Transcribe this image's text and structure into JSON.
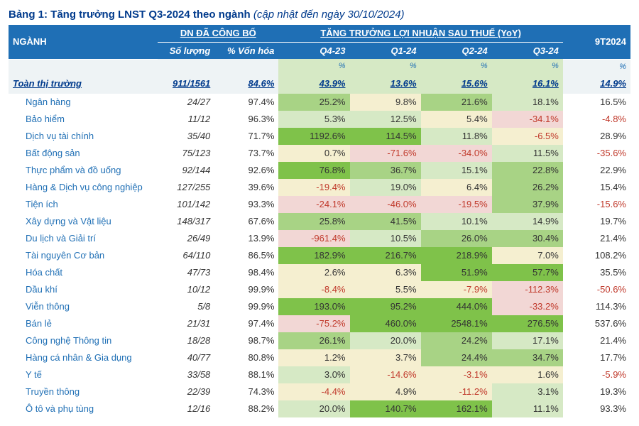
{
  "title": {
    "prefix": "Bảng 1: Tăng trưởng LNST Q3-2024 theo ngành",
    "note": "(cập nhật đến ngày 30/10/2024)"
  },
  "colors": {
    "header_bg": "#1f6fb5",
    "header_fg": "#ffffff",
    "brand_text": "#003a8c",
    "sector_text": "#1f6fb5",
    "neg_text": "#c0392b",
    "row_alt_bg": "#eef3f5",
    "heat": {
      "strong_green": "#7fc24a",
      "green": "#a8d385",
      "light_green": "#d6e9c5",
      "cream": "#f5efd0",
      "light_red": "#f2d7d5"
    }
  },
  "headers": {
    "sector": "NGÀNH",
    "group_published": "DN ĐÃ CÔNG BỐ",
    "group_growth": "TĂNG TRƯỞNG LỢI NHUẬN SAU THUẾ (YoY)",
    "qty": "Số lượng",
    "mktcap": "% Vốn hóa",
    "q4_23": "Q4-23",
    "q1_24": "Q1-24",
    "q2_24": "Q2-24",
    "q3_24": "Q3-24",
    "yoy_9t": "9T2024",
    "unit": "%"
  },
  "totals": {
    "label": "Toàn thị trường",
    "qty": "911/1561",
    "mktcap": "84.6%",
    "q4_23": "43.9%",
    "q1_24": "13.6%",
    "q2_24": "15.6%",
    "q3_24": "16.1%",
    "yoy_9t": "14.9%"
  },
  "rows": [
    {
      "name": "Ngân hàng",
      "qty": "24/27",
      "mktcap": "97.4%",
      "q4_23": {
        "v": "25.2%",
        "h": "green"
      },
      "q1_24": {
        "v": "9.8%",
        "h": "cream"
      },
      "q2_24": {
        "v": "21.6%",
        "h": "green"
      },
      "q3_24": {
        "v": "18.1%",
        "h": "light_green"
      },
      "yoy_9t": {
        "v": "16.5%"
      }
    },
    {
      "name": "Bảo hiểm",
      "qty": "11/12",
      "mktcap": "96.3%",
      "q4_23": {
        "v": "5.3%",
        "h": "light_green"
      },
      "q1_24": {
        "v": "12.5%",
        "h": "light_green"
      },
      "q2_24": {
        "v": "5.4%",
        "h": "cream"
      },
      "q3_24": {
        "v": "-34.1%",
        "h": "light_red",
        "neg": true
      },
      "yoy_9t": {
        "v": "-4.8%",
        "neg": true
      }
    },
    {
      "name": "Dịch vụ tài chính",
      "qty": "35/40",
      "mktcap": "71.7%",
      "q4_23": {
        "v": "1192.6%",
        "h": "strong_green"
      },
      "q1_24": {
        "v": "114.5%",
        "h": "strong_green"
      },
      "q2_24": {
        "v": "11.8%",
        "h": "light_green"
      },
      "q3_24": {
        "v": "-6.5%",
        "h": "cream",
        "neg": true
      },
      "yoy_9t": {
        "v": "28.9%"
      }
    },
    {
      "name": "Bất động sản",
      "qty": "75/123",
      "mktcap": "73.7%",
      "q4_23": {
        "v": "0.7%",
        "h": "cream"
      },
      "q1_24": {
        "v": "-71.6%",
        "h": "light_red",
        "neg": true
      },
      "q2_24": {
        "v": "-34.0%",
        "h": "light_red",
        "neg": true
      },
      "q3_24": {
        "v": "11.5%",
        "h": "light_green"
      },
      "yoy_9t": {
        "v": "-35.6%",
        "neg": true
      }
    },
    {
      "name": "Thực phẩm và đồ uống",
      "qty": "92/144",
      "mktcap": "92.6%",
      "q4_23": {
        "v": "76.8%",
        "h": "strong_green"
      },
      "q1_24": {
        "v": "36.7%",
        "h": "green"
      },
      "q2_24": {
        "v": "15.1%",
        "h": "light_green"
      },
      "q3_24": {
        "v": "22.8%",
        "h": "green"
      },
      "yoy_9t": {
        "v": "22.9%"
      }
    },
    {
      "name": "Hàng & Dịch vụ công nghiệp",
      "qty": "127/255",
      "mktcap": "39.6%",
      "q4_23": {
        "v": "-19.4%",
        "h": "cream",
        "neg": true
      },
      "q1_24": {
        "v": "19.0%",
        "h": "light_green"
      },
      "q2_24": {
        "v": "6.4%",
        "h": "cream"
      },
      "q3_24": {
        "v": "26.2%",
        "h": "green"
      },
      "yoy_9t": {
        "v": "15.4%"
      }
    },
    {
      "name": "Tiện ích",
      "qty": "101/142",
      "mktcap": "93.3%",
      "q4_23": {
        "v": "-24.1%",
        "h": "light_red",
        "neg": true
      },
      "q1_24": {
        "v": "-46.0%",
        "h": "light_red",
        "neg": true
      },
      "q2_24": {
        "v": "-19.5%",
        "h": "light_red",
        "neg": true
      },
      "q3_24": {
        "v": "37.9%",
        "h": "green"
      },
      "yoy_9t": {
        "v": "-15.6%",
        "neg": true
      }
    },
    {
      "name": "Xây dựng và Vật liệu",
      "qty": "148/317",
      "mktcap": "67.6%",
      "q4_23": {
        "v": "25.8%",
        "h": "green"
      },
      "q1_24": {
        "v": "41.5%",
        "h": "green"
      },
      "q2_24": {
        "v": "10.1%",
        "h": "light_green"
      },
      "q3_24": {
        "v": "14.9%",
        "h": "light_green"
      },
      "yoy_9t": {
        "v": "19.7%"
      }
    },
    {
      "name": "Du lịch và Giải trí",
      "qty": "26/49",
      "mktcap": "13.9%",
      "q4_23": {
        "v": "-961.4%",
        "h": "light_red",
        "neg": true
      },
      "q1_24": {
        "v": "10.5%",
        "h": "light_green"
      },
      "q2_24": {
        "v": "26.0%",
        "h": "green"
      },
      "q3_24": {
        "v": "30.4%",
        "h": "green"
      },
      "yoy_9t": {
        "v": "21.4%"
      }
    },
    {
      "name": "Tài nguyên Cơ bản",
      "qty": "64/110",
      "mktcap": "86.5%",
      "q4_23": {
        "v": "182.9%",
        "h": "strong_green"
      },
      "q1_24": {
        "v": "216.7%",
        "h": "strong_green"
      },
      "q2_24": {
        "v": "218.9%",
        "h": "strong_green"
      },
      "q3_24": {
        "v": "7.0%",
        "h": "cream"
      },
      "yoy_9t": {
        "v": "108.2%"
      }
    },
    {
      "name": "Hóa chất",
      "qty": "47/73",
      "mktcap": "98.4%",
      "q4_23": {
        "v": "2.6%",
        "h": "cream"
      },
      "q1_24": {
        "v": "6.3%",
        "h": "cream"
      },
      "q2_24": {
        "v": "51.9%",
        "h": "strong_green"
      },
      "q3_24": {
        "v": "57.7%",
        "h": "strong_green"
      },
      "yoy_9t": {
        "v": "35.5%"
      }
    },
    {
      "name": "Dầu khí",
      "qty": "10/12",
      "mktcap": "99.9%",
      "q4_23": {
        "v": "-8.4%",
        "h": "cream",
        "neg": true
      },
      "q1_24": {
        "v": "5.5%",
        "h": "cream"
      },
      "q2_24": {
        "v": "-7.9%",
        "h": "cream",
        "neg": true
      },
      "q3_24": {
        "v": "-112.3%",
        "h": "light_red",
        "neg": true
      },
      "yoy_9t": {
        "v": "-50.6%",
        "neg": true
      }
    },
    {
      "name": "Viễn thông",
      "qty": "5/8",
      "mktcap": "99.9%",
      "q4_23": {
        "v": "193.0%",
        "h": "strong_green"
      },
      "q1_24": {
        "v": "95.2%",
        "h": "strong_green"
      },
      "q2_24": {
        "v": "444.0%",
        "h": "strong_green"
      },
      "q3_24": {
        "v": "-33.2%",
        "h": "light_red",
        "neg": true
      },
      "yoy_9t": {
        "v": "114.3%"
      }
    },
    {
      "name": "Bán lẻ",
      "qty": "21/31",
      "mktcap": "97.4%",
      "q4_23": {
        "v": "-75.2%",
        "h": "light_red",
        "neg": true
      },
      "q1_24": {
        "v": "460.0%",
        "h": "strong_green"
      },
      "q2_24": {
        "v": "2548.1%",
        "h": "strong_green"
      },
      "q3_24": {
        "v": "276.5%",
        "h": "strong_green"
      },
      "yoy_9t": {
        "v": "537.6%"
      }
    },
    {
      "name": "Công nghệ Thông tin",
      "qty": "18/28",
      "mktcap": "98.7%",
      "q4_23": {
        "v": "26.1%",
        "h": "green"
      },
      "q1_24": {
        "v": "20.0%",
        "h": "light_green"
      },
      "q2_24": {
        "v": "24.2%",
        "h": "green"
      },
      "q3_24": {
        "v": "17.1%",
        "h": "light_green"
      },
      "yoy_9t": {
        "v": "21.4%"
      }
    },
    {
      "name": "Hàng cá nhân & Gia dụng",
      "qty": "40/77",
      "mktcap": "80.8%",
      "q4_23": {
        "v": "1.2%",
        "h": "cream"
      },
      "q1_24": {
        "v": "3.7%",
        "h": "cream"
      },
      "q2_24": {
        "v": "24.4%",
        "h": "green"
      },
      "q3_24": {
        "v": "34.7%",
        "h": "green"
      },
      "yoy_9t": {
        "v": "17.7%"
      }
    },
    {
      "name": "Y tế",
      "qty": "33/58",
      "mktcap": "88.1%",
      "q4_23": {
        "v": "3.0%",
        "h": "light_green"
      },
      "q1_24": {
        "v": "-14.6%",
        "h": "cream",
        "neg": true
      },
      "q2_24": {
        "v": "-3.1%",
        "h": "cream",
        "neg": true
      },
      "q3_24": {
        "v": "1.6%",
        "h": "cream"
      },
      "yoy_9t": {
        "v": "-5.9%",
        "neg": true
      }
    },
    {
      "name": "Truyền thông",
      "qty": "22/39",
      "mktcap": "74.3%",
      "q4_23": {
        "v": "-4.4%",
        "h": "cream",
        "neg": true
      },
      "q1_24": {
        "v": "4.9%",
        "h": "cream"
      },
      "q2_24": {
        "v": "-11.2%",
        "h": "cream",
        "neg": true
      },
      "q3_24": {
        "v": "3.1%",
        "h": "light_green"
      },
      "yoy_9t": {
        "v": "19.3%"
      }
    },
    {
      "name": "Ô tô và phụ tùng",
      "qty": "12/16",
      "mktcap": "88.2%",
      "q4_23": {
        "v": "20.0%",
        "h": "light_green"
      },
      "q1_24": {
        "v": "140.7%",
        "h": "strong_green"
      },
      "q2_24": {
        "v": "162.1%",
        "h": "strong_green"
      },
      "q3_24": {
        "v": "11.1%",
        "h": "light_green"
      },
      "yoy_9t": {
        "v": "93.3%"
      }
    }
  ]
}
